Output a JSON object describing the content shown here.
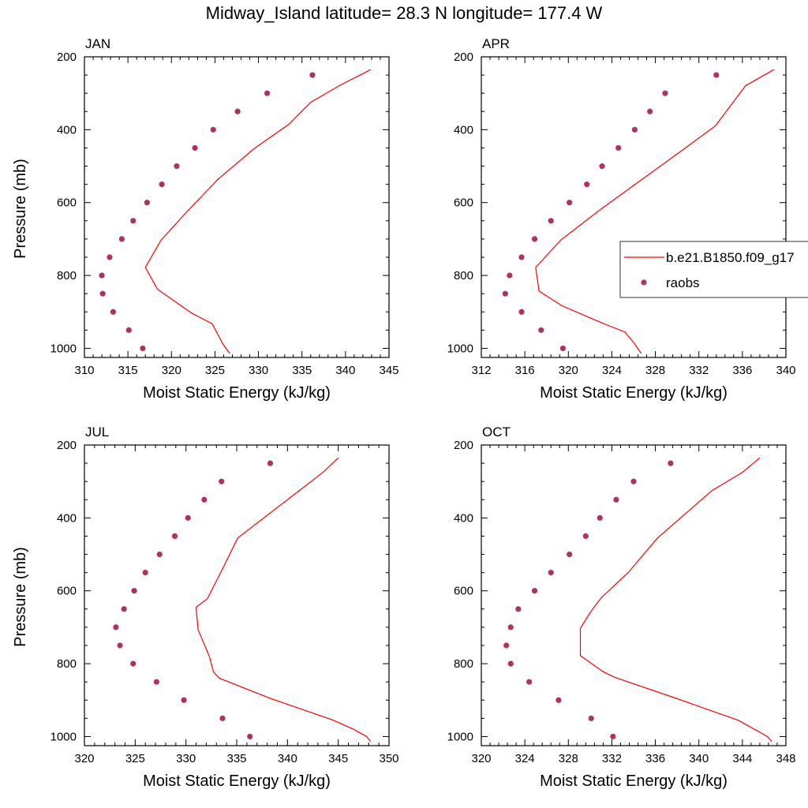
{
  "title": "Midway_Island  latitude= 28.3 N longitude= 177.4 W",
  "colors": {
    "model": "#ff0000",
    "obs": "#b03060"
  },
  "legend": {
    "model_label": "b.e21.B1850.f09_g17",
    "obs_label": "raobs"
  },
  "chart_data": [
    {
      "type": "line",
      "panel": "JAN",
      "xlabel": "Moist Static Energy (kJ/kg)",
      "ylabel": "Pressure (mb)",
      "xlim": [
        310,
        345
      ],
      "xticks": [
        310,
        315,
        320,
        325,
        330,
        335,
        340,
        345
      ],
      "ylim": [
        200,
        1025
      ],
      "yticks": [
        200,
        400,
        600,
        800,
        1000
      ],
      "y_reversed": true,
      "series": [
        {
          "name": "b.e21.B1850.f09_g17",
          "style": "line",
          "x": [
            326.7,
            325.9,
            324.7,
            322.3,
            318.4,
            317.0,
            318.8,
            321.9,
            325.4,
            329.5,
            333.5,
            336.0,
            339.3,
            342.9
          ],
          "y": [
            1014,
            988,
            933,
            903,
            838,
            778,
            703,
            622,
            535,
            452,
            385,
            325,
            279,
            235
          ]
        },
        {
          "name": "raobs",
          "style": "markers",
          "x": [
            316.7,
            315.1,
            313.3,
            312.1,
            312.0,
            312.9,
            314.3,
            315.6,
            317.2,
            318.9,
            320.6,
            322.7,
            324.8,
            327.6,
            331.0,
            336.2
          ],
          "y": [
            1000,
            950,
            900,
            850,
            800,
            750,
            700,
            650,
            600,
            550,
            500,
            450,
            400,
            350,
            300,
            250
          ]
        }
      ]
    },
    {
      "type": "line",
      "panel": "APR",
      "xlabel": "Moist Static Energy (kJ/kg)",
      "ylabel": "",
      "xlim": [
        312,
        340
      ],
      "xticks": [
        312,
        316,
        320,
        324,
        328,
        332,
        336,
        340
      ],
      "ylim": [
        200,
        1025
      ],
      "yticks": [
        200,
        400,
        600,
        800,
        1000
      ],
      "y_reversed": true,
      "legend_position": "right",
      "series": [
        {
          "name": "b.e21.B1850.f09_g17",
          "style": "line",
          "x": [
            326.7,
            326.1,
            325.2,
            323.3,
            319.4,
            317.3,
            317.0,
            319.3,
            322.9,
            326.6,
            330.3,
            333.5,
            336.3,
            338.9
          ],
          "y": [
            1014,
            988,
            955,
            933,
            883,
            843,
            778,
            703,
            620,
            540,
            460,
            390,
            279,
            235
          ]
        },
        {
          "name": "raobs",
          "style": "markers",
          "x": [
            319.5,
            317.5,
            315.7,
            314.2,
            314.6,
            315.7,
            316.9,
            318.4,
            320.1,
            321.7,
            323.1,
            324.6,
            326.1,
            327.5,
            328.9,
            333.6
          ],
          "y": [
            1000,
            950,
            900,
            850,
            800,
            750,
            700,
            650,
            600,
            550,
            500,
            450,
            400,
            350,
            300,
            250
          ]
        }
      ]
    },
    {
      "type": "line",
      "panel": "JUL",
      "xlabel": "Moist Static Energy (kJ/kg)",
      "ylabel": "Pressure (mb)",
      "xlim": [
        320,
        350
      ],
      "xticks": [
        320,
        325,
        330,
        335,
        340,
        345,
        350
      ],
      "ylim": [
        200,
        1025
      ],
      "yticks": [
        200,
        400,
        600,
        800,
        1000
      ],
      "y_reversed": true,
      "series": [
        {
          "name": "b.e21.B1850.f09_g17",
          "style": "line",
          "x": [
            348.2,
            347.8,
            346.5,
            344.5,
            338.3,
            333.3,
            332.7,
            332.3,
            331.2,
            331.0,
            332.1,
            333.6,
            335.1,
            343.5,
            345.0
          ],
          "y": [
            1014,
            1000,
            980,
            955,
            895,
            840,
            822,
            780,
            707,
            645,
            622,
            540,
            455,
            275,
            235
          ]
        },
        {
          "name": "raobs",
          "style": "markers",
          "x": [
            336.3,
            333.6,
            329.8,
            327.1,
            324.8,
            323.5,
            323.1,
            323.9,
            324.9,
            326.0,
            327.4,
            328.9,
            330.2,
            331.8,
            333.5,
            338.3
          ],
          "y": [
            1000,
            950,
            900,
            850,
            800,
            750,
            700,
            650,
            600,
            550,
            500,
            450,
            400,
            350,
            300,
            250
          ]
        }
      ]
    },
    {
      "type": "line",
      "panel": "OCT",
      "xlabel": "Moist Static Energy (kJ/kg)",
      "ylabel": "",
      "xlim": [
        320,
        348
      ],
      "xticks": [
        320,
        324,
        328,
        332,
        336,
        340,
        344,
        348
      ],
      "ylim": [
        200,
        1025
      ],
      "yticks": [
        200,
        400,
        600,
        800,
        1000
      ],
      "y_reversed": true,
      "series": [
        {
          "name": "b.e21.B1850.f09_g17",
          "style": "line",
          "x": [
            346.7,
            346.3,
            345.1,
            343.6,
            337.9,
            332.3,
            331.2,
            329.1,
            329.1,
            330.0,
            331.0,
            333.5,
            336.2,
            341.2,
            344.0,
            345.6
          ],
          "y": [
            1014,
            1000,
            980,
            955,
            895,
            838,
            822,
            778,
            703,
            660,
            620,
            550,
            455,
            325,
            275,
            235
          ]
        },
        {
          "name": "raobs",
          "style": "markers",
          "x": [
            332.1,
            330.1,
            327.1,
            324.4,
            322.7,
            322.3,
            322.7,
            323.4,
            324.9,
            326.4,
            328.1,
            329.6,
            330.9,
            332.4,
            334.0,
            337.4
          ],
          "y": [
            1000,
            950,
            900,
            850,
            800,
            750,
            700,
            650,
            600,
            550,
            500,
            450,
            400,
            350,
            300,
            250
          ]
        }
      ]
    }
  ]
}
